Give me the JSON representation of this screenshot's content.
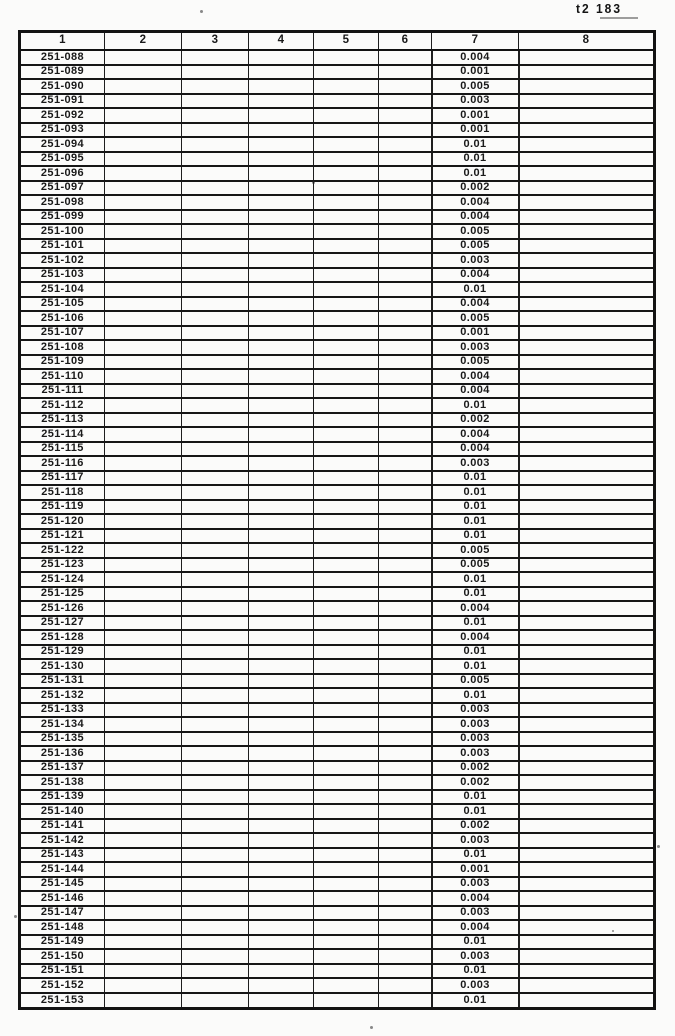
{
  "page": {
    "corner_label": "t2 183"
  },
  "table": {
    "headers": [
      "1",
      "2",
      "3",
      "4",
      "5",
      "6",
      "7",
      "8"
    ],
    "value_column_header": "7",
    "rows": [
      {
        "id": "251-088",
        "value": "0.004"
      },
      {
        "id": "251-089",
        "value": "0.001"
      },
      {
        "id": "251-090",
        "value": "0.005"
      },
      {
        "id": "251-091",
        "value": "0.003"
      },
      {
        "id": "251-092",
        "value": "0.001"
      },
      {
        "id": "251-093",
        "value": "0.001"
      },
      {
        "id": "251-094",
        "value": "0.01"
      },
      {
        "id": "251-095",
        "value": "0.01"
      },
      {
        "id": "251-096",
        "value": "0.01"
      },
      {
        "id": "251-097",
        "value": "0.002"
      },
      {
        "id": "251-098",
        "value": "0.004"
      },
      {
        "id": "251-099",
        "value": "0.004"
      },
      {
        "id": "251-100",
        "value": "0.005"
      },
      {
        "id": "251-101",
        "value": "0.005"
      },
      {
        "id": "251-102",
        "value": "0.003"
      },
      {
        "id": "251-103",
        "value": "0.004"
      },
      {
        "id": "251-104",
        "value": "0.01"
      },
      {
        "id": "251-105",
        "value": "0.004"
      },
      {
        "id": "251-106",
        "value": "0.005"
      },
      {
        "id": "251-107",
        "value": "0.001"
      },
      {
        "id": "251-108",
        "value": "0.003"
      },
      {
        "id": "251-109",
        "value": "0.005"
      },
      {
        "id": "251-110",
        "value": "0.004"
      },
      {
        "id": "251-111",
        "value": "0.004"
      },
      {
        "id": "251-112",
        "value": "0.01"
      },
      {
        "id": "251-113",
        "value": "0.002"
      },
      {
        "id": "251-114",
        "value": "0.004"
      },
      {
        "id": "251-115",
        "value": "0.004"
      },
      {
        "id": "251-116",
        "value": "0.003"
      },
      {
        "id": "251-117",
        "value": "0.01"
      },
      {
        "id": "251-118",
        "value": "0.01"
      },
      {
        "id": "251-119",
        "value": "0.01"
      },
      {
        "id": "251-120",
        "value": "0.01"
      },
      {
        "id": "251-121",
        "value": "0.01"
      },
      {
        "id": "251-122",
        "value": "0.005"
      },
      {
        "id": "251-123",
        "value": "0.005"
      },
      {
        "id": "251-124",
        "value": "0.01"
      },
      {
        "id": "251-125",
        "value": "0.01"
      },
      {
        "id": "251-126",
        "value": "0.004"
      },
      {
        "id": "251-127",
        "value": "0.01"
      },
      {
        "id": "251-128",
        "value": "0.004"
      },
      {
        "id": "251-129",
        "value": "0.01"
      },
      {
        "id": "251-130",
        "value": "0.01"
      },
      {
        "id": "251-131",
        "value": "0.005"
      },
      {
        "id": "251-132",
        "value": "0.01"
      },
      {
        "id": "251-133",
        "value": "0.003"
      },
      {
        "id": "251-134",
        "value": "0.003"
      },
      {
        "id": "251-135",
        "value": "0.003"
      },
      {
        "id": "251-136",
        "value": "0.003"
      },
      {
        "id": "251-137",
        "value": "0.002"
      },
      {
        "id": "251-138",
        "value": "0.002"
      },
      {
        "id": "251-139",
        "value": "0.01"
      },
      {
        "id": "251-140",
        "value": "0.01"
      },
      {
        "id": "251-141",
        "value": "0.002"
      },
      {
        "id": "251-142",
        "value": "0.003"
      },
      {
        "id": "251-143",
        "value": "0.01"
      },
      {
        "id": "251-144",
        "value": "0.001"
      },
      {
        "id": "251-145",
        "value": "0.003"
      },
      {
        "id": "251-146",
        "value": "0.004"
      },
      {
        "id": "251-147",
        "value": "0.003"
      },
      {
        "id": "251-148",
        "value": "0.004"
      },
      {
        "id": "251-149",
        "value": "0.01"
      },
      {
        "id": "251-150",
        "value": "0.003"
      },
      {
        "id": "251-151",
        "value": "0.01"
      },
      {
        "id": "251-152",
        "value": "0.003"
      },
      {
        "id": "251-153",
        "value": "0.01"
      }
    ]
  }
}
